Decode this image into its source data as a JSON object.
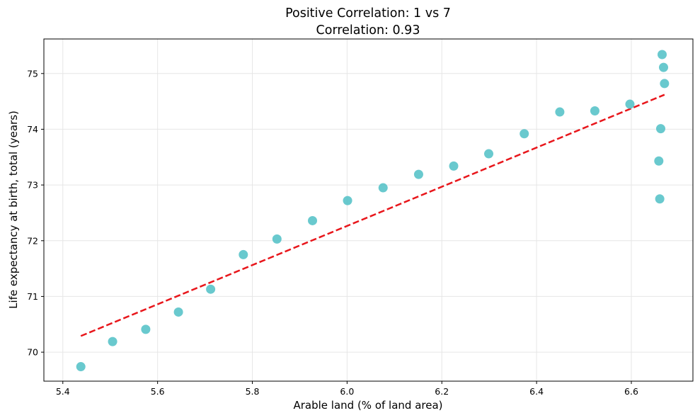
{
  "chart_data": {
    "type": "scatter",
    "title": "Positive Correlation: 1 vs 7",
    "subtitle": "Correlation: 0.93",
    "xlabel": "Arable land (% of land area)",
    "ylabel": "Life expectancy at birth, total (years)",
    "xlim": [
      5.36,
      6.73
    ],
    "ylim": [
      69.48,
      75.62
    ],
    "xticks": [
      5.4,
      5.6,
      5.8,
      6.0,
      6.2,
      6.4,
      6.6
    ],
    "xtick_labels": [
      "5.4",
      "5.6",
      "5.8",
      "6.0",
      "6.2",
      "6.4",
      "6.6"
    ],
    "yticks": [
      70,
      71,
      72,
      73,
      74,
      75
    ],
    "ytick_labels": [
      "70",
      "71",
      "72",
      "73",
      "74",
      "75"
    ],
    "grid": true,
    "point_color": "#4fbfc6",
    "trend_color": "#e8161b",
    "points": [
      {
        "x": 5.438,
        "y": 69.74
      },
      {
        "x": 5.505,
        "y": 70.19
      },
      {
        "x": 5.575,
        "y": 70.41
      },
      {
        "x": 5.644,
        "y": 70.72
      },
      {
        "x": 5.712,
        "y": 71.13
      },
      {
        "x": 5.781,
        "y": 71.75
      },
      {
        "x": 5.852,
        "y": 72.03
      },
      {
        "x": 5.927,
        "y": 72.36
      },
      {
        "x": 6.001,
        "y": 72.72
      },
      {
        "x": 6.076,
        "y": 72.95
      },
      {
        "x": 6.151,
        "y": 73.19
      },
      {
        "x": 6.225,
        "y": 73.34
      },
      {
        "x": 6.299,
        "y": 73.56
      },
      {
        "x": 6.374,
        "y": 73.92
      },
      {
        "x": 6.449,
        "y": 74.31
      },
      {
        "x": 6.523,
        "y": 74.33
      },
      {
        "x": 6.597,
        "y": 74.45
      },
      {
        "x": 6.658,
        "y": 73.43
      },
      {
        "x": 6.66,
        "y": 72.75
      },
      {
        "x": 6.662,
        "y": 74.01
      },
      {
        "x": 6.665,
        "y": 75.34
      },
      {
        "x": 6.668,
        "y": 75.11
      },
      {
        "x": 6.67,
        "y": 74.82
      }
    ],
    "trendline": {
      "x": [
        5.438,
        6.67
      ],
      "y": [
        70.29,
        74.62
      ]
    }
  }
}
